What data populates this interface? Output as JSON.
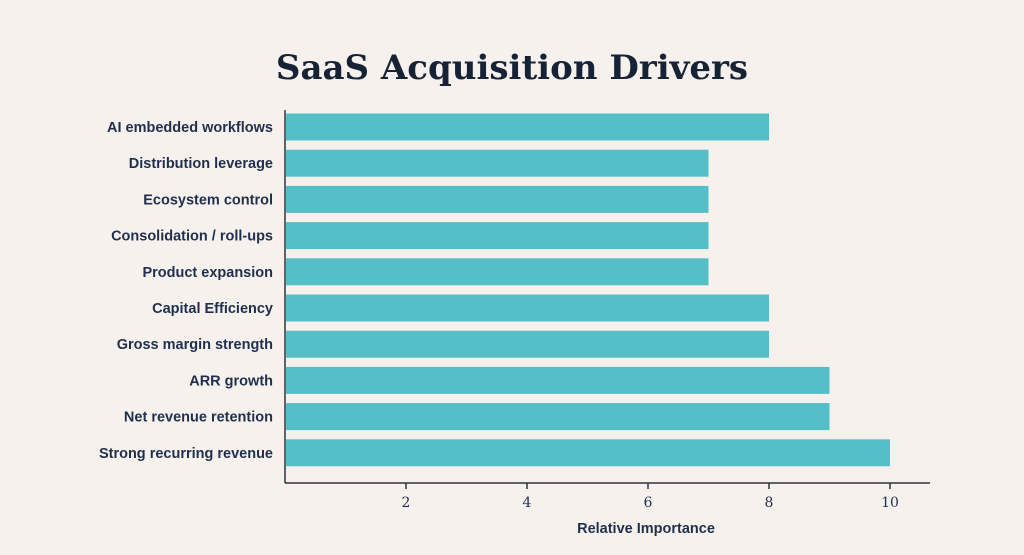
{
  "chart_data": {
    "type": "bar",
    "orientation": "horizontal",
    "title": "SaaS Acquisition Drivers",
    "xlabel": "Relative Importance",
    "ylabel": "",
    "categories": [
      "AI embedded workflows",
      "Distribution leverage",
      "Ecosystem control",
      "Consolidation / roll-ups",
      "Product expansion",
      "Capital Efficiency",
      "Gross margin strength",
      "ARR growth",
      "Net revenue retention",
      "Strong recurring revenue"
    ],
    "values": [
      8,
      7,
      7,
      7,
      7,
      8,
      8,
      9,
      9,
      10
    ],
    "xticks": [
      "2",
      "4",
      "6",
      "8",
      "10"
    ],
    "xlim": [
      0,
      10.7
    ],
    "grid": false,
    "legend": "none",
    "bar_color": "#55bfc7"
  }
}
